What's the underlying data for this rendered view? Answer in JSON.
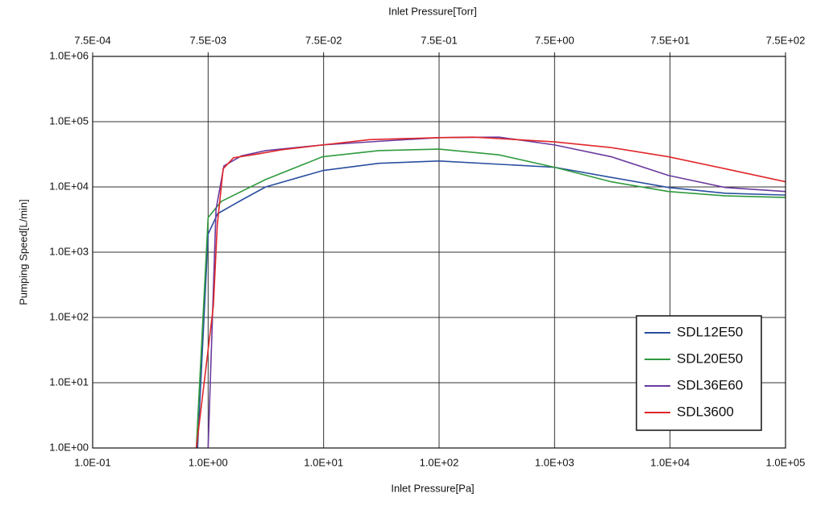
{
  "chart_data": {
    "type": "line",
    "xlabel": "Inlet Pressure[Pa]",
    "ylabel": "Pumping Speed[L/min]",
    "x2label": "Inlet Pressure[Torr]",
    "xscale": "log",
    "yscale": "log",
    "grid": true,
    "legend": "lower right",
    "xlim": [
      0.1,
      100000
    ],
    "xticks": [
      {
        "value": 0.1,
        "label": "1.0E-01"
      },
      {
        "value": 1,
        "label": "1.0E+00"
      },
      {
        "value": 10,
        "label": "1.0E+01"
      },
      {
        "value": 100,
        "label": "1.0E+02"
      },
      {
        "value": 1000,
        "label": "1.0E+03"
      },
      {
        "value": 10000,
        "label": "1.0E+04"
      },
      {
        "value": 100000,
        "label": "1.0E+05"
      }
    ],
    "x2lim": [
      0.00075,
      750
    ],
    "x2ticks": [
      {
        "value": 0.00075,
        "label": "7.5E-04"
      },
      {
        "value": 0.0075,
        "label": "7.5E-03"
      },
      {
        "value": 0.075,
        "label": "7.5E-02"
      },
      {
        "value": 0.75,
        "label": "7.5E-01"
      },
      {
        "value": 7.5,
        "label": "7.5E+00"
      },
      {
        "value": 75,
        "label": "7.5E+01"
      },
      {
        "value": 750,
        "label": "7.5E+02"
      }
    ],
    "ylim": [
      1,
      1000000
    ],
    "yticks": [
      {
        "value": 1,
        "label": "1.0E+00"
      },
      {
        "value": 10,
        "label": "1.0E+01"
      },
      {
        "value": 100,
        "label": "1.0E+02"
      },
      {
        "value": 1000,
        "label": "1.0E+03"
      },
      {
        "value": 10000,
        "label": "1.0E+04"
      },
      {
        "value": 100000,
        "label": "1.0E+05"
      },
      {
        "value": 1000000,
        "label": "1.0E+06"
      }
    ],
    "series": [
      {
        "name": "SDL12E50",
        "color": "#2a4fa0",
        "x": [
          0.81,
          1.0,
          1.21,
          1.95,
          3.15,
          9.8,
          30,
          100,
          1000,
          3100,
          9700,
          30000,
          100000
        ],
        "values": [
          1,
          1900,
          3900,
          6300,
          10000,
          17800,
          23000,
          25000,
          20000,
          14000,
          9800,
          8000,
          7500
        ]
      },
      {
        "name": "SDL20E50",
        "color": "#2f9a3e",
        "x": [
          0.79,
          1.0,
          1.3,
          3.15,
          9.8,
          30,
          100,
          330,
          1000,
          3100,
          9700,
          30000,
          100000
        ],
        "values": [
          1,
          3400,
          6000,
          13000,
          29000,
          36000,
          38000,
          31000,
          20000,
          12000,
          8500,
          7300,
          6900
        ]
      },
      {
        "name": "SDL36E60",
        "color": "#6a3a9e",
        "x": [
          1.0,
          1.17,
          1.37,
          1.95,
          3.15,
          9.8,
          30,
          100,
          330,
          1000,
          3100,
          9700,
          30000,
          100000
        ],
        "values": [
          1,
          4500,
          21000,
          30000,
          36000,
          44000,
          50000,
          57000,
          58000,
          44000,
          29000,
          15000,
          9800,
          8500
        ]
      },
      {
        "name": "SDL3600",
        "color": "#e0262a",
        "x": [
          0.79,
          1.11,
          1.2,
          1.35,
          1.66,
          2.7,
          4.3,
          9.8,
          25,
          100,
          200,
          1000,
          3100,
          9700,
          30000,
          100000
        ],
        "values": [
          1,
          150,
          2600,
          19000,
          28000,
          32000,
          37000,
          44000,
          53000,
          57000,
          58000,
          49000,
          40000,
          29000,
          19000,
          12000
        ]
      }
    ]
  }
}
